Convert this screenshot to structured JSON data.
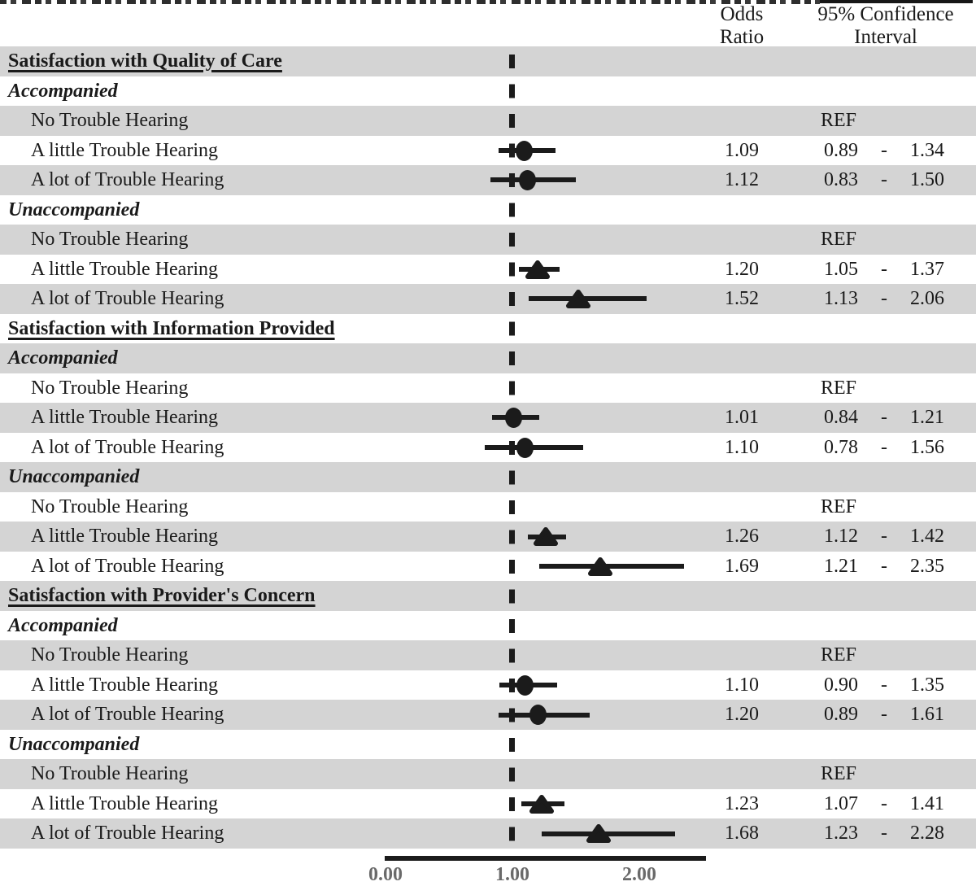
{
  "figure": {
    "colors": {
      "band": "#d4d4d4",
      "ink": "#1b1b1b",
      "text": "#1a1a1a",
      "tick": "#6a6a6a"
    },
    "cropped_caption_visible": true
  },
  "header": {
    "odds_ratio": "Odds\nRatio",
    "confidence_interval": "95% Confidence\nInterval"
  },
  "ref_label": "REF",
  "ci_separator": "-",
  "chart_data": {
    "type": "forest",
    "marker_legend": {
      "circle": "Accompanied",
      "triangle": "Unaccompanied"
    },
    "x_axis": {
      "tick_values": [
        0,
        1,
        2
      ],
      "tick_labels": [
        "0.00",
        "1.00",
        "2.00"
      ],
      "reference_line": 1.0,
      "axis_range_shown": [
        0.0,
        2.52
      ],
      "grid": false
    },
    "sections": [
      {
        "label": "Satisfaction with Quality of Care",
        "groups": [
          {
            "label": "Accompanied",
            "marker": "circle",
            "items": [
              {
                "label": "No Trouble Hearing",
                "ref": true
              },
              {
                "label": "A little Trouble Hearing",
                "or": 1.09,
                "ci": [
                  0.89,
                  1.34
                ]
              },
              {
                "label": "A lot of Trouble Hearing",
                "or": 1.12,
                "ci": [
                  0.83,
                  1.5
                ]
              }
            ]
          },
          {
            "label": "Unaccompanied",
            "marker": "triangle",
            "items": [
              {
                "label": "No Trouble Hearing",
                "ref": true
              },
              {
                "label": "A little Trouble Hearing",
                "or": 1.2,
                "ci": [
                  1.05,
                  1.37
                ]
              },
              {
                "label": "A lot of Trouble Hearing",
                "or": 1.52,
                "ci": [
                  1.13,
                  2.06
                ]
              }
            ]
          }
        ]
      },
      {
        "label": "Satisfaction with Information Provided",
        "groups": [
          {
            "label": "Accompanied",
            "marker": "circle",
            "items": [
              {
                "label": "No Trouble Hearing",
                "ref": true
              },
              {
                "label": "A little Trouble Hearing",
                "or": 1.01,
                "ci": [
                  0.84,
                  1.21
                ]
              },
              {
                "label": "A lot of Trouble Hearing",
                "or": 1.1,
                "ci": [
                  0.78,
                  1.56
                ]
              }
            ]
          },
          {
            "label": "Unaccompanied",
            "marker": "triangle",
            "items": [
              {
                "label": "No Trouble Hearing",
                "ref": true
              },
              {
                "label": "A little Trouble Hearing",
                "or": 1.26,
                "ci": [
                  1.12,
                  1.42
                ]
              },
              {
                "label": "A lot of Trouble Hearing",
                "or": 1.69,
                "ci": [
                  1.21,
                  2.35
                ]
              }
            ]
          }
        ]
      },
      {
        "label": "Satisfaction with Provider's Concern",
        "groups": [
          {
            "label": "Accompanied",
            "marker": "circle",
            "items": [
              {
                "label": "No Trouble Hearing",
                "ref": true
              },
              {
                "label": "A little Trouble Hearing",
                "or": 1.1,
                "ci": [
                  0.9,
                  1.35
                ]
              },
              {
                "label": "A lot of Trouble Hearing",
                "or": 1.2,
                "ci": [
                  0.89,
                  1.61
                ]
              }
            ]
          },
          {
            "label": "Unaccompanied",
            "marker": "triangle",
            "items": [
              {
                "label": "No Trouble Hearing",
                "ref": true
              },
              {
                "label": "A little Trouble Hearing",
                "or": 1.23,
                "ci": [
                  1.07,
                  1.41
                ]
              },
              {
                "label": "A lot of Trouble Hearing",
                "or": 1.68,
                "ci": [
                  1.23,
                  2.28
                ]
              }
            ]
          }
        ]
      }
    ]
  }
}
